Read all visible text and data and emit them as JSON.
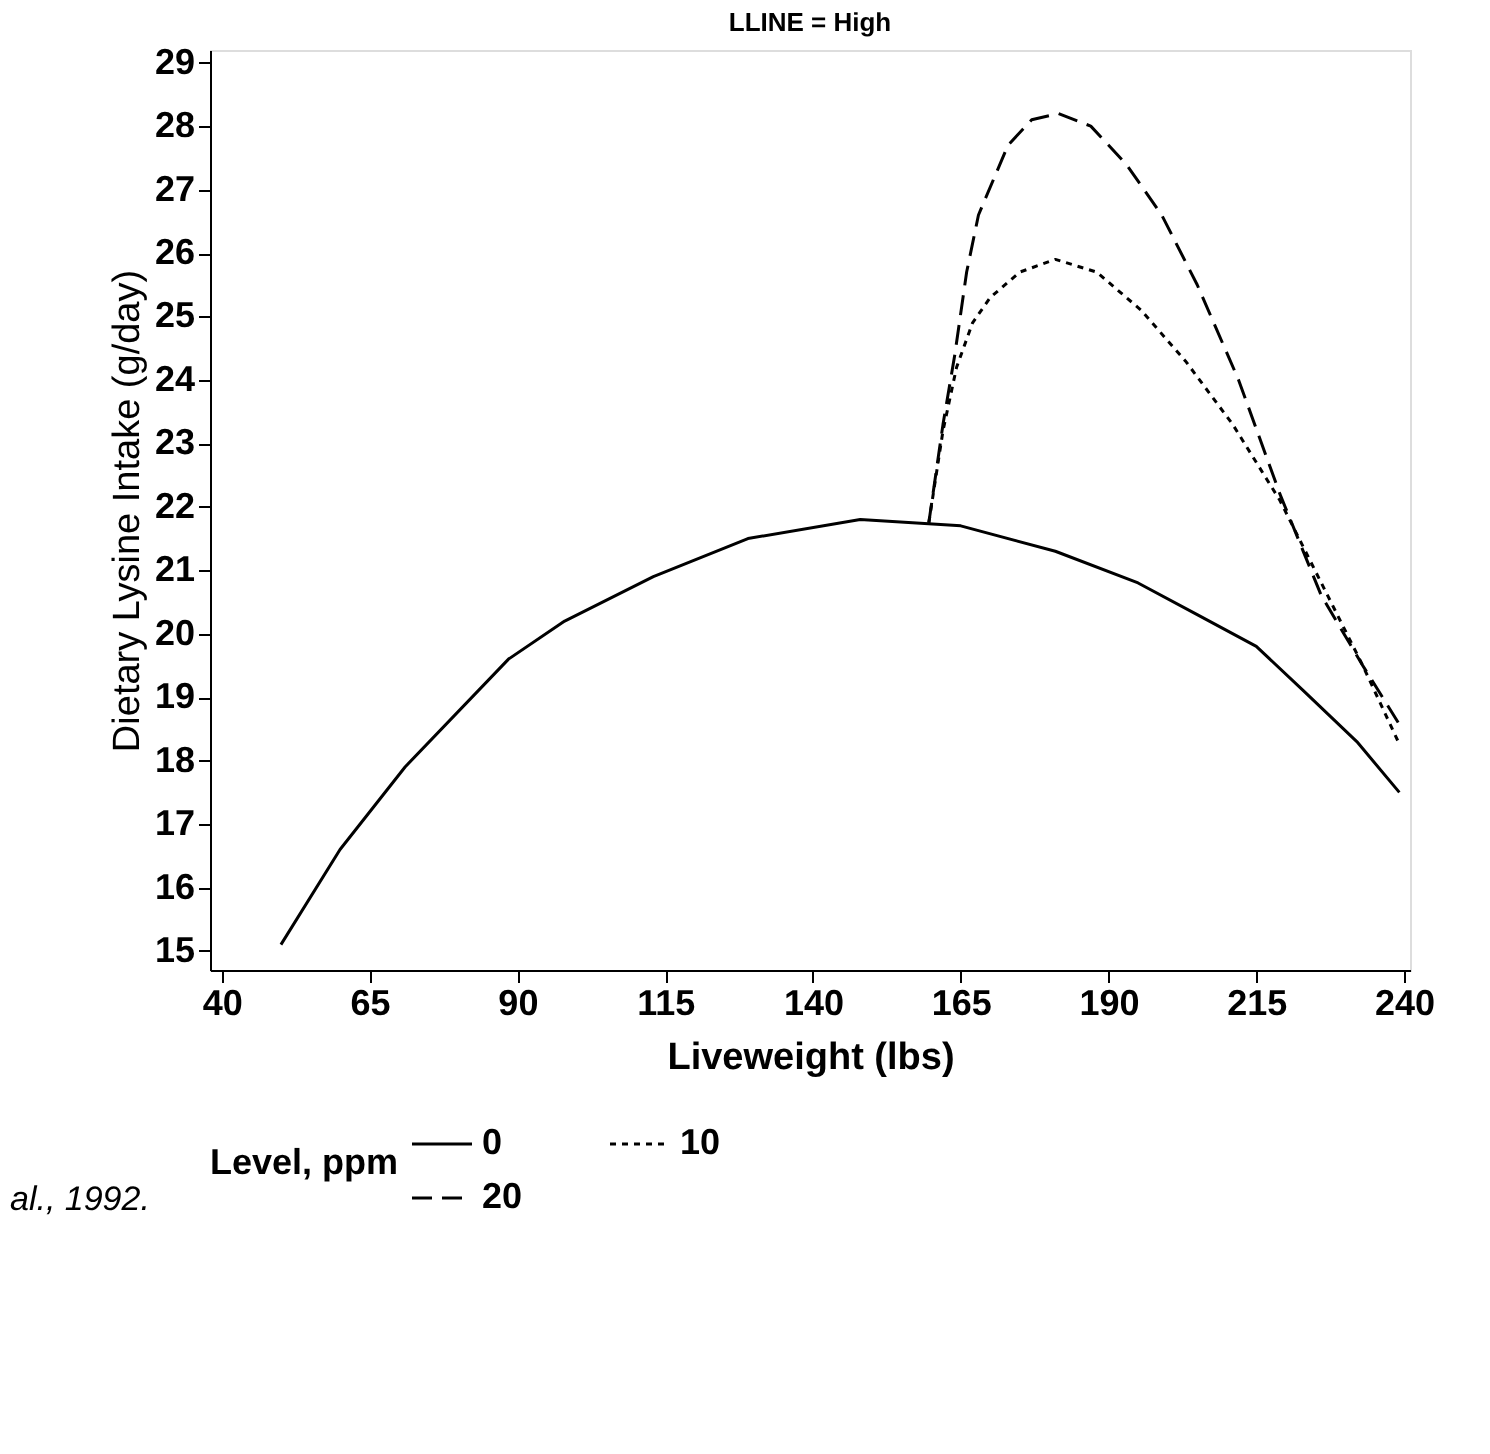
{
  "chart_data": {
    "type": "line",
    "title": "LLINE = High",
    "xlabel": "Liveweight (lbs)",
    "ylabel": "Dietary Lysine Intake (g/day)",
    "legend_title": "Level, ppm",
    "legend": "bottom",
    "grid": false,
    "marker": "none",
    "xlim": [
      38,
      241
    ],
    "xticks": [
      40,
      65,
      90,
      115,
      140,
      165,
      190,
      215,
      240
    ],
    "ylim": [
      14.7,
      29.2
    ],
    "yticks": [
      15,
      16,
      17,
      18,
      19,
      20,
      21,
      22,
      23,
      24,
      25,
      26,
      27,
      28,
      29
    ],
    "series": [
      {
        "name": "0",
        "color": "#000000",
        "line_style": "solid",
        "x": [
          50,
          60,
          71,
          88.5,
          98,
          113,
          129,
          148,
          165,
          181,
          195,
          205,
          215,
          223,
          232,
          239.2
        ],
        "values": [
          15.1,
          16.6,
          17.9,
          19.6,
          20.2,
          20.9,
          21.5,
          21.8,
          21.7,
          21.3,
          20.8,
          20.3,
          19.8,
          19.1,
          18.3,
          17.5
        ]
      },
      {
        "name": "10",
        "color": "#000000",
        "line_style": "dotted",
        "x": [
          159.6,
          162,
          164.3,
          167,
          170,
          175,
          181,
          188,
          195.5,
          203,
          211,
          219,
          226,
          233,
          239
        ],
        "values": [
          21.75,
          23.2,
          24.2,
          24.9,
          25.3,
          25.7,
          25.9,
          25.7,
          25.1,
          24.3,
          23.3,
          22.1,
          20.8,
          19.5,
          18.3
        ]
      },
      {
        "name": "20",
        "color": "#000000",
        "line_style": "dashed",
        "x": [
          159.6,
          162,
          164,
          166,
          168,
          173,
          177,
          181.5,
          187,
          193,
          199,
          205,
          212,
          219,
          226,
          233,
          239
        ],
        "values": [
          21.75,
          23.3,
          24.4,
          25.7,
          26.6,
          27.7,
          28.1,
          28.2,
          28.0,
          27.4,
          26.6,
          25.5,
          24.0,
          22.2,
          20.6,
          19.5,
          18.6
        ]
      }
    ],
    "annotations": [
      "al., 1992."
    ]
  }
}
